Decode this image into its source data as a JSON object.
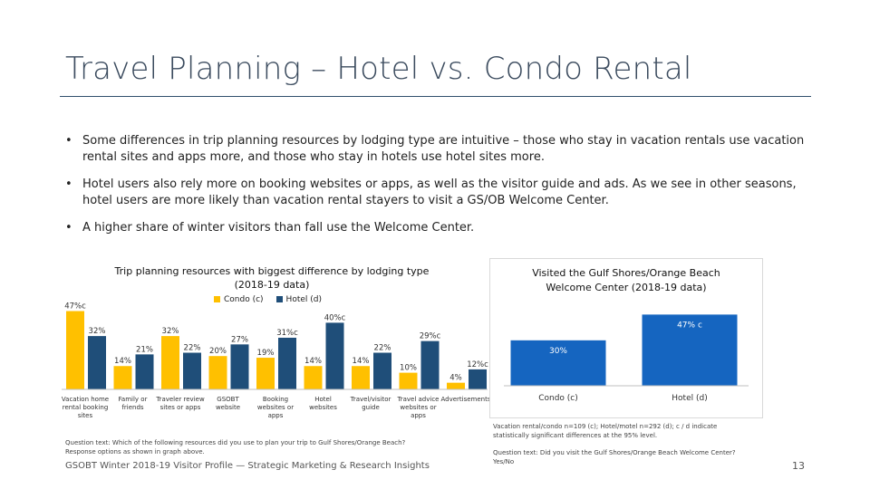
{
  "slide": {
    "title": "Travel Planning – Hotel vs. Condo Rental",
    "bullets": [
      "Some differences in trip planning resources by lodging type are intuitive – those who stay in vacation rentals use vacation rental sites and apps more, and those who stay in hotels use hotel sites more.",
      "Hotel users also rely more on booking websites or apps, as well as the visitor guide and ads. As we see in other seasons, hotel users are more likely than vacation rental stayers to visit a GS/OB Welcome Center.",
      "A higher share of winter visitors than fall use the Welcome Center."
    ],
    "bullet_glyph": "•",
    "footer": "GSOBT Winter 2018-19 Visitor Profile — Strategic Marketing & Research Insights",
    "page_number": "13"
  },
  "left_chart_text": {
    "title_line1": "Trip planning resources with biggest difference by lodging type",
    "title_line2": "(2018-19 data)",
    "question": "Question text: Which of the following resources did you use to plan your trip to Gulf Shores/Orange Beach?",
    "response": "Response options as shown in graph above."
  },
  "right_chart_text": {
    "title_line1": "Visited the Gulf Shores/Orange Beach",
    "title_line2": "Welcome Center (2018-19 data)",
    "note1": "Vacation rental/condo n=109 (c); Hotel/motel n=292 (d); c / d indicate",
    "note2": "statistically significant differences at the 95% level.",
    "question1": "Question text: Did you visit the Gulf Shores/Orange Beach Welcome Center?",
    "question2": "Yes/No"
  },
  "chart_data": [
    {
      "type": "bar",
      "title": "Trip planning resources with biggest difference by lodging type (2018-19 data)",
      "categories": [
        [
          "Vacation home",
          "rental booking",
          "sites"
        ],
        [
          "Family or",
          "friends"
        ],
        [
          "Traveler review",
          "sites or apps"
        ],
        [
          "GSOBT",
          "website"
        ],
        [
          "Booking",
          "websites or",
          "apps"
        ],
        [
          "Hotel",
          "websites"
        ],
        [
          "Travel/visitor",
          "guide"
        ],
        [
          "Travel advice",
          "websites or",
          "apps"
        ],
        [
          "Advertisements"
        ]
      ],
      "series": [
        {
          "name": "Condo (c)",
          "color": "#ffc000",
          "values": [
            47,
            14,
            32,
            20,
            19,
            14,
            14,
            10,
            4
          ],
          "labels": [
            "47%",
            "14%",
            "32%",
            "20%",
            "19%",
            "14%",
            "14%",
            "10%",
            "4%"
          ]
        },
        {
          "name": "Hotel (d)",
          "color": "#1f4e79",
          "values": [
            32,
            21,
            22,
            27,
            31,
            40,
            22,
            29,
            12
          ],
          "labels": [
            "32%",
            "21%",
            "22%",
            "27%",
            "31%",
            "40%",
            "22%",
            "29%",
            "12%"
          ]
        }
      ],
      "sig_marker": "c",
      "sig_flags": {
        "Condo (c)": [
          true,
          false,
          false,
          false,
          false,
          false,
          false,
          false,
          false
        ],
        "Hotel (d)": [
          false,
          false,
          false,
          false,
          true,
          true,
          false,
          true,
          true
        ]
      },
      "ylim": [
        0,
        50
      ]
    },
    {
      "type": "bar",
      "title": "Visited the Gulf Shores/Orange Beach Welcome Center (2018-19 data)",
      "categories": [
        "Condo (c)",
        "Hotel (d)"
      ],
      "values": [
        30,
        47
      ],
      "labels": [
        "30%",
        "47%"
      ],
      "sig_suffix": [
        "",
        "c"
      ],
      "color": "#1565c0",
      "ylim": [
        0,
        55
      ]
    }
  ]
}
